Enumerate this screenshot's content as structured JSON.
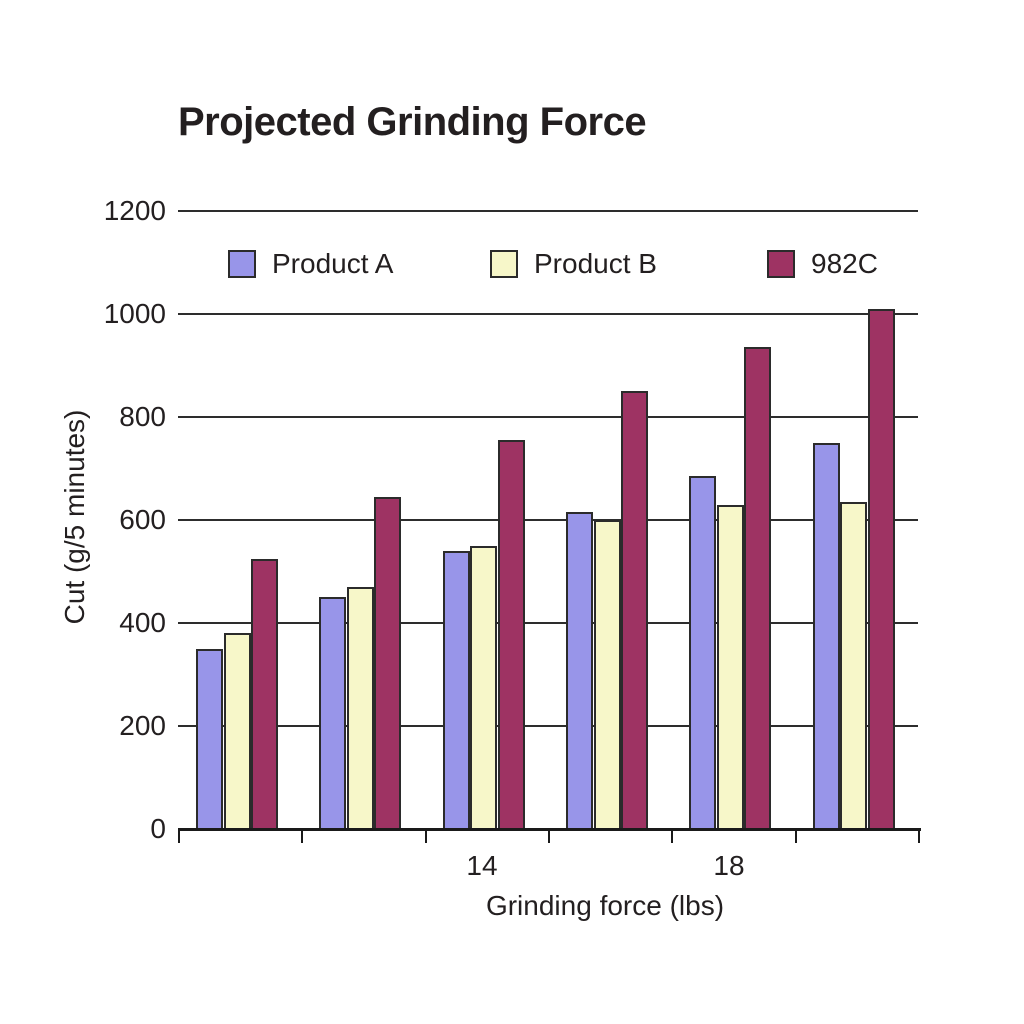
{
  "chart_data": {
    "type": "bar",
    "title": "Projected Grinding Force",
    "xlabel": "Grinding force (lbs)",
    "ylabel": "Cut (g/5 minutes)",
    "categories": [
      "",
      "",
      "14",
      "",
      "18",
      ""
    ],
    "x_axis_labels": [
      {
        "group_index": 2,
        "label": "14"
      },
      {
        "group_index": 4,
        "label": "18"
      }
    ],
    "series": [
      {
        "name": "Product A",
        "color": "#9895e9",
        "values": [
          350,
          450,
          540,
          615,
          685,
          750
        ]
      },
      {
        "name": "Product B",
        "color": "#f7f7c9",
        "values": [
          380,
          470,
          550,
          600,
          630,
          635
        ]
      },
      {
        "name": "982C",
        "color": "#9e3363",
        "values": [
          525,
          645,
          755,
          850,
          935,
          1010
        ]
      }
    ],
    "ylim": [
      0,
      1200
    ],
    "yticks": [
      0,
      200,
      400,
      600,
      800,
      1000,
      1200
    ],
    "grid": true,
    "legend_position": "top-inside",
    "colors": {
      "text": "#231f20",
      "gridline": "#2d2d2d",
      "axis": "#1a1a1a",
      "background": "#ffffff"
    }
  }
}
